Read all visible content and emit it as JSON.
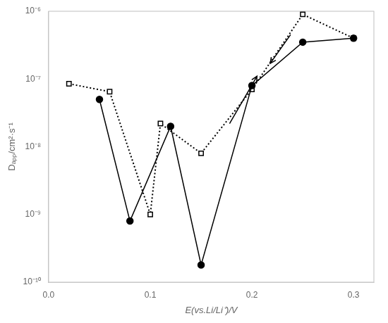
{
  "chart_data": {
    "type": "line",
    "x_label": "E(vs.Li/Li⁺)/V",
    "y_label": "Dₐₚₚ/cm²·s⁻¹",
    "log": "y",
    "grid": false,
    "xlim": [
      0,
      0.32
    ],
    "ylim": [
      1e-10,
      1e-06
    ],
    "xticks": [
      {
        "value": 0,
        "label": "0.0"
      },
      0.1,
      0.2,
      0.3
    ],
    "yticks": [
      {
        "value": 1e-10,
        "label": "10⁻¹⁰"
      },
      {
        "value": 1e-09,
        "label": "10⁻⁹"
      },
      {
        "value": 1e-08,
        "label": "10⁻⁸"
      },
      {
        "value": 1e-07,
        "label": "10⁻⁷"
      },
      {
        "value": 1e-06,
        "label": "10⁻⁶"
      }
    ],
    "series": [
      {
        "color": "#000000",
        "marker": "circle",
        "line_style": "solid",
        "x": [
          0.05,
          0.08,
          0.12,
          0.15,
          0.2,
          0.25,
          0.3
        ],
        "values": [
          5e-08,
          8e-10,
          2e-08,
          1.8e-10,
          8e-08,
          3.5e-07,
          4e-07
        ]
      },
      {
        "color": "#000000",
        "marker": "square",
        "line_style": "dotted",
        "x": [
          0.02,
          0.06,
          0.1,
          0.11,
          0.15,
          0.2,
          0.25,
          0.3
        ],
        "values": [
          8.5e-08,
          6.5e-08,
          1e-09,
          2.2e-08,
          8e-09,
          7e-08,
          9e-07,
          4e-07
        ]
      }
    ],
    "arrows": [
      {
        "from": [
          0.178,
          2.2e-08
        ],
        "to": [
          0.205,
          1.1e-07
        ]
      },
      {
        "from": [
          0.238,
          4.5e-07
        ],
        "to": [
          0.218,
          1.7e-07
        ]
      }
    ]
  }
}
